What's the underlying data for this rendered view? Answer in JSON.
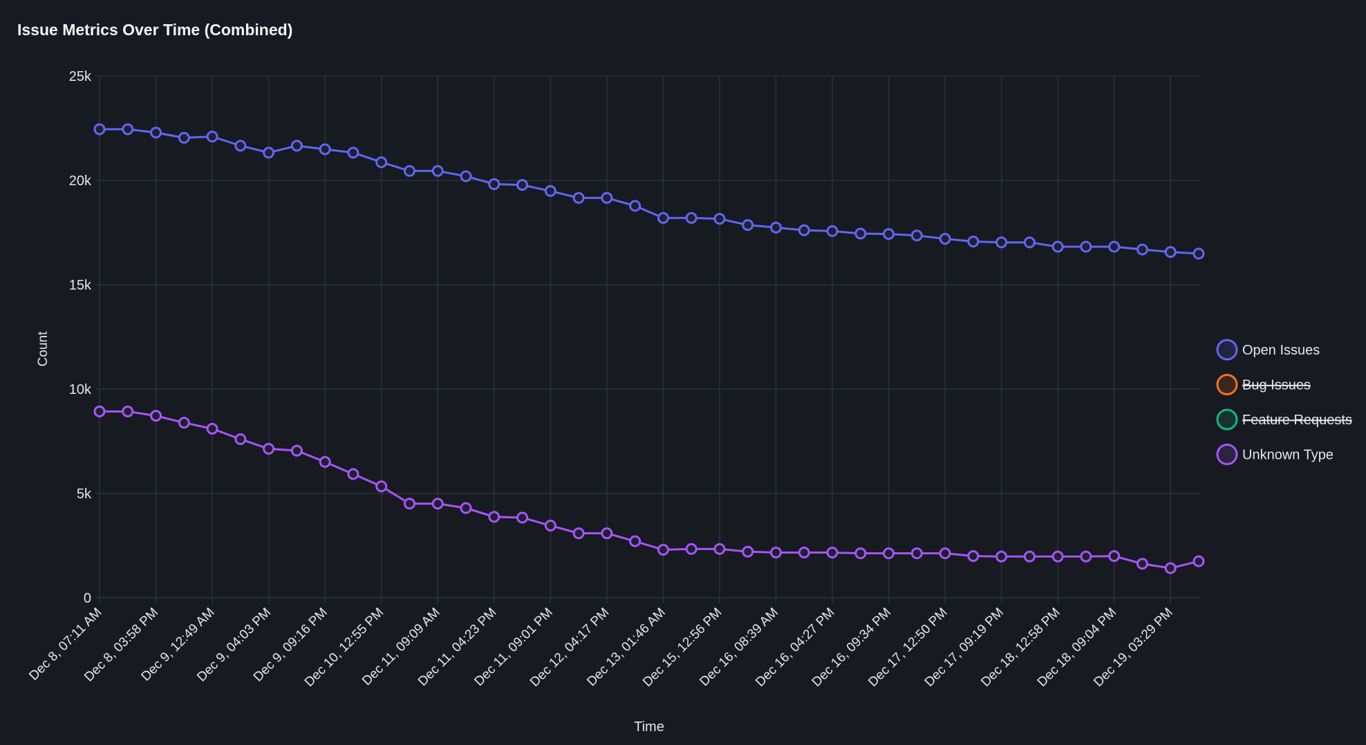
{
  "chart_data": {
    "type": "line",
    "title": "Issue Metrics Over Time (Combined)",
    "xlabel": "Time",
    "ylabel": "Count",
    "ylim": [
      0,
      25000
    ],
    "yticks": [
      0,
      5000,
      10000,
      15000,
      20000,
      25000
    ],
    "ytick_labels": [
      "0",
      "5k",
      "10k",
      "15k",
      "20k",
      "25k"
    ],
    "grid": true,
    "legend_position": "right",
    "x_tick_labels": [
      "Dec 8, 07:11 AM",
      "Dec 8, 03:58 PM",
      "Dec 9, 12:49 AM",
      "Dec 9, 04:03 PM",
      "Dec 9, 09:16 PM",
      "Dec 10, 12:55 PM",
      "Dec 11, 09:09 AM",
      "Dec 11, 04:23 PM",
      "Dec 11, 09:01 PM",
      "Dec 12, 04:17 PM",
      "Dec 13, 01:46 AM",
      "Dec 15, 12:56 PM",
      "Dec 16, 08:39 AM",
      "Dec 16, 04:27 PM",
      "Dec 16, 09:34 PM",
      "Dec 17, 12:50 PM",
      "Dec 17, 09:19 PM",
      "Dec 18, 12:58 PM",
      "Dec 18, 09:04 PM",
      "Dec 19, 03:29 PM"
    ],
    "series": [
      {
        "name": "Open Issues",
        "color": "#6366f1",
        "hidden": false,
        "values": [
          22450,
          22450,
          22290,
          22040,
          22100,
          21660,
          21330,
          21660,
          21490,
          21330,
          20870,
          20450,
          20450,
          20200,
          19820,
          19780,
          19490,
          19160,
          19160,
          18780,
          18200,
          18200,
          18160,
          17860,
          17740,
          17610,
          17570,
          17450,
          17430,
          17360,
          17200,
          17070,
          17030,
          17030,
          16820,
          16820,
          16820,
          16690,
          16570,
          16490
        ]
      },
      {
        "name": "Bug Issues",
        "color": "#f97316",
        "hidden": true,
        "values": []
      },
      {
        "name": "Feature Requests",
        "color": "#10b981",
        "hidden": true,
        "values": []
      },
      {
        "name": "Unknown Type",
        "color": "#a855f7",
        "hidden": false,
        "values": [
          8930,
          8930,
          8720,
          8390,
          8100,
          7600,
          7140,
          7050,
          6510,
          5930,
          5340,
          4510,
          4510,
          4300,
          3880,
          3840,
          3460,
          3090,
          3090,
          2710,
          2300,
          2340,
          2340,
          2210,
          2170,
          2170,
          2170,
          2130,
          2130,
          2130,
          2130,
          2000,
          1980,
          1980,
          1980,
          1980,
          2000,
          1630,
          1420,
          1750
        ]
      }
    ]
  }
}
